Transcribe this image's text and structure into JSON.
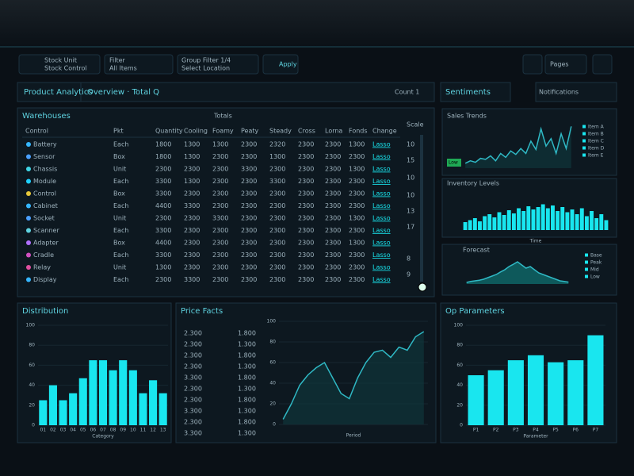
{
  "toolbar": {
    "items": [
      {
        "line1": "Stock Unit",
        "line2": "Stock Control"
      },
      {
        "line1": "Filter",
        "line2": "All Items"
      },
      {
        "line1": "Group Filter 1/4",
        "line2": "Select Location"
      }
    ],
    "apply": "Apply",
    "page": "Pages"
  },
  "tabs": {
    "left": "Product Analytics",
    "middle": "Overview · Total Q",
    "count": "Count 1",
    "right": "Sentiments",
    "notify": "Notifications"
  },
  "table": {
    "title": "Warehouses",
    "subtitle": "Totals",
    "columns": [
      "Control",
      "Pkt",
      "Quantity",
      "Cooling",
      "Foamy",
      "Peaty",
      "Steady",
      "Cross",
      "Lorna",
      "Fonds",
      "Change"
    ],
    "rows": [
      [
        "Battery",
        "Each",
        "1800",
        "1300",
        "1300",
        "2300",
        "2320",
        "2300",
        "2300",
        "1300",
        "Lasso"
      ],
      [
        "Sensor",
        "Box",
        "1800",
        "1300",
        "2300",
        "2300",
        "1300",
        "2300",
        "2300",
        "2300",
        "Lasso"
      ],
      [
        "Chassis",
        "Unit",
        "2300",
        "2300",
        "2300",
        "3300",
        "2300",
        "2300",
        "2300",
        "1300",
        "Lasso"
      ],
      [
        "Module",
        "Each",
        "3300",
        "1300",
        "2300",
        "2300",
        "3300",
        "2300",
        "2300",
        "2300",
        "Lasso"
      ],
      [
        "Control",
        "Box",
        "3300",
        "2300",
        "2300",
        "2300",
        "2300",
        "2300",
        "2300",
        "2300",
        "Lasso"
      ],
      [
        "Cabinet",
        "Each",
        "4400",
        "3300",
        "2300",
        "2300",
        "2300",
        "2300",
        "2300",
        "2300",
        "Lasso"
      ],
      [
        "Socket",
        "Unit",
        "2300",
        "2300",
        "3300",
        "2300",
        "2300",
        "2300",
        "2300",
        "1300",
        "Lasso"
      ],
      [
        "Scanner",
        "Each",
        "3300",
        "2300",
        "2300",
        "2300",
        "2300",
        "2300",
        "2300",
        "2300",
        "Lasso"
      ],
      [
        "Adapter",
        "Box",
        "4400",
        "2300",
        "2300",
        "2300",
        "2300",
        "2300",
        "2300",
        "1300",
        "Lasso"
      ],
      [
        "Cradle",
        "Each",
        "3300",
        "2300",
        "2300",
        "2300",
        "2300",
        "2300",
        "2300",
        "2300",
        "Lasso"
      ],
      [
        "Relay",
        "Unit",
        "1300",
        "2300",
        "2300",
        "2300",
        "2300",
        "2300",
        "2300",
        "2300",
        "Lasso"
      ],
      [
        "Display",
        "Each",
        "2300",
        "3300",
        "2300",
        "2300",
        "2300",
        "2300",
        "2300",
        "2300",
        "Lasso"
      ]
    ],
    "scale_title": "Scale",
    "scale": [
      "10",
      "15",
      "10",
      "10",
      "13",
      "17",
      "8",
      "9"
    ]
  },
  "trend": {
    "type": "line",
    "title": "Sales Trends",
    "badge": "Low",
    "legend": [
      "Item A",
      "Item B",
      "Item C",
      "Item D",
      "Item E"
    ],
    "values": [
      10,
      15,
      12,
      20,
      18,
      25,
      15,
      30,
      22,
      35,
      28,
      40,
      30,
      55,
      38,
      80,
      45,
      60,
      30,
      70,
      40,
      85
    ],
    "ylim": [
      0,
      100
    ]
  },
  "levels": {
    "type": "bar",
    "title": "Inventory Levels",
    "xlabel": "Time",
    "values": [
      20,
      25,
      30,
      22,
      35,
      40,
      32,
      45,
      38,
      50,
      42,
      55,
      48,
      60,
      52,
      58,
      65,
      55,
      62,
      48,
      58,
      45,
      52,
      40,
      55,
      35,
      48,
      30,
      40,
      25
    ],
    "ylim": [
      0,
      100
    ]
  },
  "forecast": {
    "type": "area",
    "title": "Forecast",
    "legend": [
      "Base",
      "Peak",
      "Mid",
      "Low"
    ],
    "values": [
      5,
      8,
      10,
      12,
      15,
      20,
      25,
      30,
      38,
      45,
      55,
      62,
      70,
      60,
      50,
      55,
      45,
      35,
      30,
      25,
      20,
      15,
      10,
      8,
      6
    ],
    "ylim": [
      0,
      100
    ]
  },
  "distribution": {
    "type": "bar",
    "title": "Distribution",
    "xlabel": "Category",
    "categories": [
      "01",
      "02",
      "03",
      "04",
      "05",
      "06",
      "07",
      "08",
      "09",
      "10",
      "11",
      "12",
      "13"
    ],
    "values": [
      25,
      40,
      25,
      32,
      47,
      65,
      65,
      55,
      65,
      55,
      32,
      45,
      32
    ],
    "ylim": [
      0,
      100
    ],
    "yticks": [
      0,
      20,
      40,
      60,
      80,
      100
    ]
  },
  "price": {
    "type": "line",
    "title": "Price Facts",
    "xlabel": "Period",
    "rows": [
      [
        "2.300",
        "1.800"
      ],
      [
        "2.300",
        "1.300"
      ],
      [
        "2.300",
        "1.800"
      ],
      [
        "2.300",
        "1.300"
      ],
      [
        "3.300",
        "1.800"
      ],
      [
        "2.300",
        "1.300"
      ],
      [
        "2.300",
        "1.800"
      ],
      [
        "3.300",
        "1.300"
      ],
      [
        "2.300",
        "1.800"
      ],
      [
        "3.300",
        "1.300"
      ]
    ],
    "values": [
      5,
      20,
      38,
      48,
      55,
      60,
      45,
      30,
      25,
      45,
      60,
      70,
      72,
      65,
      75,
      72,
      85,
      90
    ],
    "ylim": [
      0,
      100
    ],
    "yticks": [
      0,
      20,
      40,
      60,
      80,
      100
    ]
  },
  "parameters": {
    "type": "bar",
    "title": "Op Parameters",
    "xlabel": "Parameter",
    "categories": [
      "P1",
      "P2",
      "P3",
      "P4",
      "P5",
      "P6",
      "P7"
    ],
    "values": [
      50,
      55,
      65,
      70,
      63,
      65,
      90
    ],
    "ylim": [
      0,
      100
    ],
    "yticks": [
      0,
      20,
      40,
      60,
      80,
      100
    ]
  }
}
